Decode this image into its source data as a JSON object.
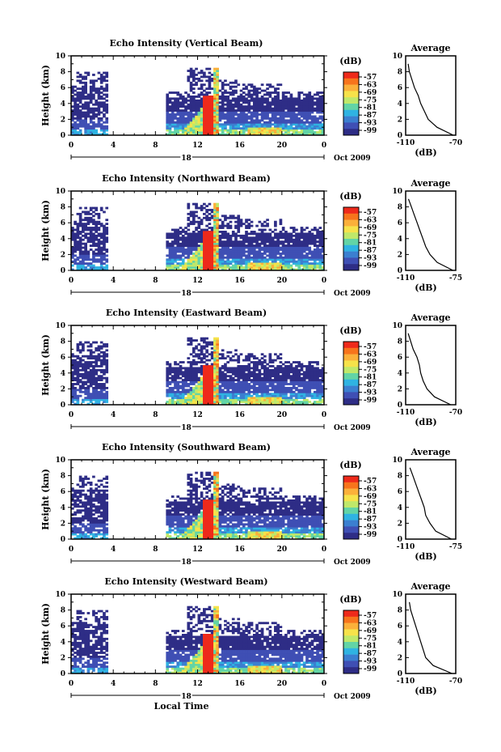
{
  "figure": {
    "xlabel": "Local Time",
    "date_label": "Oct 2009",
    "colorbar_unit": "(dB)",
    "colorbar_ticks": [
      "-57",
      "-63",
      "-69",
      "-75",
      "-81",
      "-87",
      "-93",
      "-99"
    ],
    "colorbar_colors": [
      "#ee2a1b",
      "#f7741c",
      "#fbb03a",
      "#f6e24a",
      "#bfe86a",
      "#62d4a6",
      "#2fb3e2",
      "#3b7fd0",
      "#3f4fb4",
      "#2e2d86"
    ],
    "average_title": "Average",
    "average_unit": "(dB)"
  },
  "chart_data": [
    {
      "type": "heatmap",
      "title": "Echo Intensity (Vertical Beam)",
      "xlabel": "Local Time",
      "ylabel": "Height (km)",
      "x_ticks": [
        "0",
        "4",
        "8",
        "12",
        "16",
        "20",
        "0"
      ],
      "y_ticks": [
        "0",
        "2",
        "4",
        "6",
        "8",
        "10"
      ],
      "xlim": [
        0,
        24
      ],
      "ylim": [
        0,
        10
      ],
      "day_marker": "18",
      "date": "Oct 2009",
      "colorbar": {
        "label": "(dB)",
        "ticks": [
          -57,
          -63,
          -69,
          -75,
          -81,
          -87,
          -93,
          -99
        ]
      },
      "average_profile": {
        "title": "Average",
        "xlabel": "(dB)",
        "x_ticks": [
          "-110",
          "-70"
        ],
        "xlim": [
          -110,
          -70
        ],
        "height": [
          0,
          1,
          2,
          3,
          4,
          5,
          6,
          7,
          8,
          9
        ],
        "value": [
          -72,
          -85,
          -92,
          -95,
          -98,
          -100,
          -103,
          -105,
          -107,
          -108
        ]
      }
    },
    {
      "type": "heatmap",
      "title": "Echo Intensity (Northward Beam)",
      "xlabel": "Local Time",
      "ylabel": "Height (km)",
      "x_ticks": [
        "0",
        "4",
        "8",
        "12",
        "16",
        "20",
        "0"
      ],
      "y_ticks": [
        "0",
        "2",
        "4",
        "6",
        "8",
        "10"
      ],
      "xlim": [
        0,
        24
      ],
      "ylim": [
        0,
        10
      ],
      "day_marker": "18",
      "date": "Oct 2009",
      "colorbar": {
        "label": "(dB)",
        "ticks": [
          -57,
          -63,
          -69,
          -75,
          -81,
          -87,
          -93,
          -99
        ]
      },
      "average_profile": {
        "title": "Average",
        "xlabel": "(dB)",
        "x_ticks": [
          "-110",
          "-75"
        ],
        "xlim": [
          -110,
          -75
        ],
        "height": [
          0,
          1,
          2,
          3,
          4,
          5,
          6,
          7,
          8,
          9
        ],
        "value": [
          -77,
          -88,
          -93,
          -96,
          -98,
          -100,
          -102,
          -104,
          -106,
          -108
        ]
      }
    },
    {
      "type": "heatmap",
      "title": "Echo Intensity (Eastward Beam)",
      "xlabel": "Local Time",
      "ylabel": "Height (km)",
      "x_ticks": [
        "0",
        "4",
        "8",
        "12",
        "16",
        "20",
        "0"
      ],
      "y_ticks": [
        "0",
        "2",
        "4",
        "6",
        "8",
        "10"
      ],
      "xlim": [
        0,
        24
      ],
      "ylim": [
        0,
        10
      ],
      "day_marker": "18",
      "date": "Oct 2009",
      "colorbar": {
        "label": "(dB)",
        "ticks": [
          -57,
          -63,
          -69,
          -75,
          -81,
          -87,
          -93,
          -99
        ]
      },
      "average_profile": {
        "title": "Average",
        "xlabel": "(dB)",
        "x_ticks": [
          "-110",
          "-70"
        ],
        "xlim": [
          -110,
          -70
        ],
        "height": [
          0,
          1,
          2,
          3,
          4,
          5,
          6,
          7,
          8,
          9
        ],
        "value": [
          -74,
          -87,
          -93,
          -96,
          -98,
          -99,
          -101,
          -104,
          -106,
          -108
        ]
      }
    },
    {
      "type": "heatmap",
      "title": "Echo Intensity (Southward Beam)",
      "xlabel": "Local Time",
      "ylabel": "Height (km)",
      "x_ticks": [
        "0",
        "4",
        "8",
        "12",
        "16",
        "20",
        "0"
      ],
      "y_ticks": [
        "0",
        "2",
        "4",
        "6",
        "8",
        "10"
      ],
      "xlim": [
        0,
        24
      ],
      "ylim": [
        0,
        10
      ],
      "day_marker": "18",
      "date": "Oct 2009",
      "colorbar": {
        "label": "(dB)",
        "ticks": [
          -57,
          -63,
          -69,
          -75,
          -81,
          -87,
          -93,
          -99
        ]
      },
      "average_profile": {
        "title": "Average",
        "xlabel": "(dB)",
        "x_ticks": [
          "-110",
          "-75"
        ],
        "xlim": [
          -110,
          -75
        ],
        "height": [
          0,
          1,
          2,
          3,
          4,
          5,
          6,
          7,
          8,
          9
        ],
        "value": [
          -78,
          -89,
          -93,
          -96,
          -97,
          -99,
          -101,
          -103,
          -105,
          -107
        ]
      }
    },
    {
      "type": "heatmap",
      "title": "Echo Intensity (Westward Beam)",
      "xlabel": "Local Time",
      "ylabel": "Height (km)",
      "x_ticks": [
        "0",
        "4",
        "8",
        "12",
        "16",
        "20",
        "0"
      ],
      "y_ticks": [
        "0",
        "2",
        "4",
        "6",
        "8",
        "10"
      ],
      "xlim": [
        0,
        24
      ],
      "ylim": [
        0,
        10
      ],
      "day_marker": "18",
      "date": "Oct 2009",
      "colorbar": {
        "label": "(dB)",
        "ticks": [
          -57,
          -63,
          -69,
          -75,
          -81,
          -87,
          -93,
          -99
        ]
      },
      "average_profile": {
        "title": "Average",
        "xlabel": "(dB)",
        "x_ticks": [
          "-110",
          "-70"
        ],
        "xlim": [
          -110,
          -70
        ],
        "height": [
          0,
          1,
          2,
          3,
          4,
          5,
          6,
          7,
          8,
          9
        ],
        "value": [
          -73,
          -88,
          -94,
          -96,
          -98,
          -100,
          -102,
          -104,
          -106,
          -107
        ]
      }
    }
  ]
}
